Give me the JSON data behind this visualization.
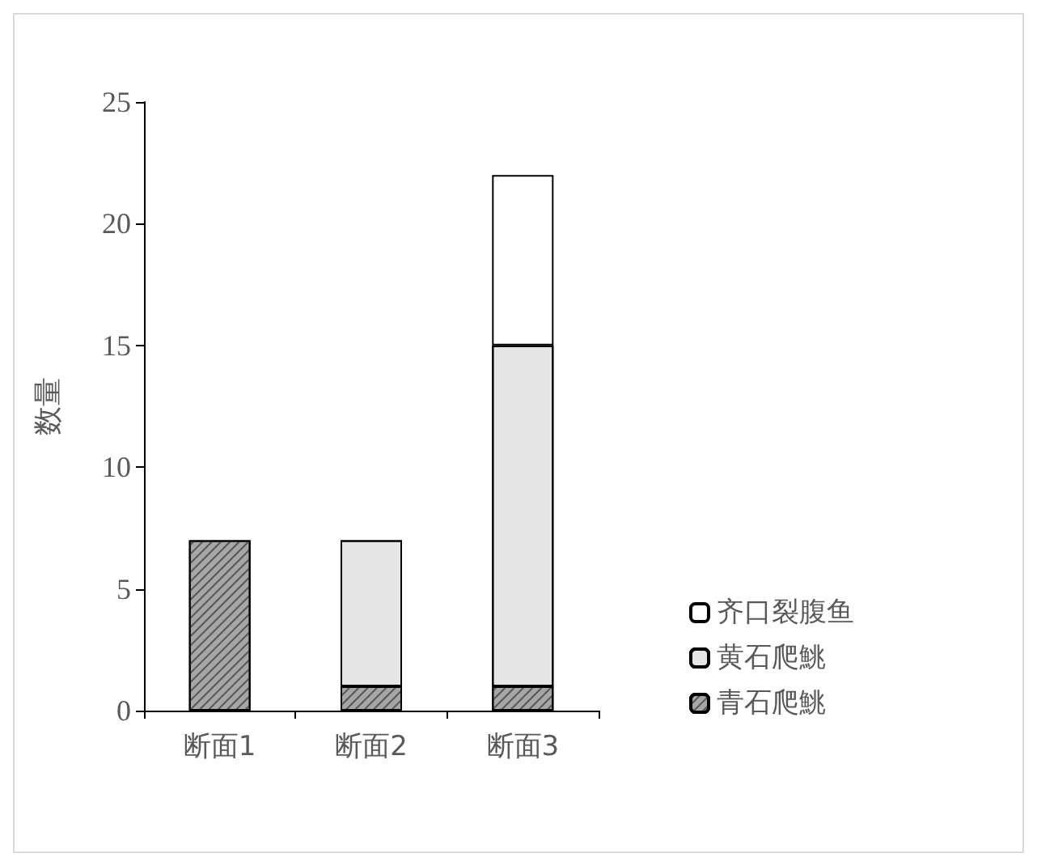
{
  "chart_data": {
    "type": "bar",
    "stacked": true,
    "ylabel": "数量",
    "categories": [
      "断面1",
      "断面2",
      "断面3"
    ],
    "series": [
      {
        "name": "青石爬鮡",
        "color": "#a6a6a6",
        "values": [
          7,
          1,
          1
        ]
      },
      {
        "name": "黄石爬鮡",
        "color": "#e6e6e6",
        "values": [
          null,
          6,
          14
        ]
      },
      {
        "name": "齐口裂腹鱼",
        "color": "#ffffff",
        "values": [
          null,
          null,
          7
        ]
      }
    ],
    "ylim": [
      0,
      25
    ],
    "yticks": [
      0,
      5,
      10,
      15,
      20,
      25
    ],
    "grid": false,
    "legend": "right"
  }
}
